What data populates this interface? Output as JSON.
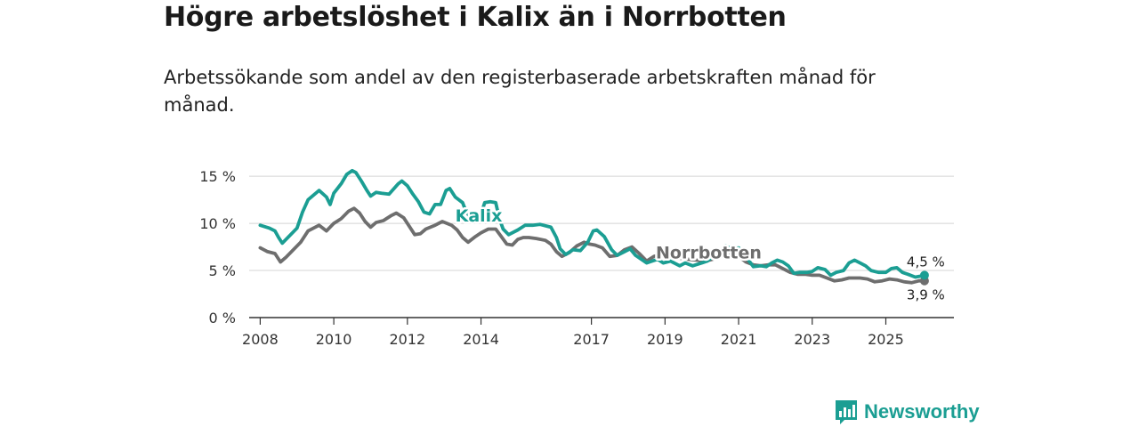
{
  "title": "Högre arbetslöshet i Kalix än i Norrbotten",
  "subtitle": "Arbetssökande som andel av den registerbaserade arbetskraften månad för månad.",
  "brand": {
    "name": "Newsworthy",
    "color": "#1b9e93",
    "icon": "bar-chart-logo-icon"
  },
  "chart_data": {
    "type": "line",
    "xlim": [
      2007.7,
      2026.85
    ],
    "ylim": [
      0,
      17
    ],
    "y_ticks": [
      0,
      5,
      10,
      15
    ],
    "y_tick_labels": [
      "0 %",
      "5 %",
      "10 %",
      "15 %"
    ],
    "x_ticks": [
      2008,
      2010,
      2012,
      2014,
      2017,
      2019,
      2021,
      2023,
      2025
    ],
    "x_tick_labels": [
      "2008",
      "2010",
      "2012",
      "2014",
      "2017",
      "2019",
      "2021",
      "2023",
      "2025"
    ],
    "grid": true,
    "series": [
      {
        "name": "Kalix",
        "color": "#1b9e93",
        "label_at": [
          2013.3,
          10.2
        ],
        "end_label": "4,5 %",
        "points": [
          [
            2008.0,
            9.8
          ],
          [
            2008.25,
            9.5
          ],
          [
            2008.4,
            9.2
          ],
          [
            2008.5,
            8.5
          ],
          [
            2008.6,
            7.9
          ],
          [
            2008.8,
            8.7
          ],
          [
            2009.0,
            9.5
          ],
          [
            2009.15,
            11.2
          ],
          [
            2009.3,
            12.5
          ],
          [
            2009.6,
            13.5
          ],
          [
            2009.8,
            12.8
          ],
          [
            2009.9,
            12.0
          ],
          [
            2010.0,
            13.2
          ],
          [
            2010.2,
            14.2
          ],
          [
            2010.35,
            15.2
          ],
          [
            2010.5,
            15.6
          ],
          [
            2010.6,
            15.4
          ],
          [
            2010.75,
            14.5
          ],
          [
            2010.9,
            13.5
          ],
          [
            2011.0,
            12.9
          ],
          [
            2011.15,
            13.3
          ],
          [
            2011.3,
            13.2
          ],
          [
            2011.5,
            13.1
          ],
          [
            2011.75,
            14.2
          ],
          [
            2011.85,
            14.5
          ],
          [
            2012.0,
            14.0
          ],
          [
            2012.15,
            13.1
          ],
          [
            2012.3,
            12.3
          ],
          [
            2012.45,
            11.2
          ],
          [
            2012.6,
            11.0
          ],
          [
            2012.75,
            12.0
          ],
          [
            2012.9,
            12.0
          ],
          [
            2013.05,
            13.5
          ],
          [
            2013.15,
            13.7
          ],
          [
            2013.3,
            12.8
          ],
          [
            2013.5,
            12.2
          ],
          [
            2013.6,
            11.2
          ],
          [
            2013.75,
            10.5
          ],
          [
            2013.85,
            10.6
          ],
          [
            2014.0,
            11.0
          ],
          [
            2014.1,
            12.2
          ],
          [
            2014.25,
            12.3
          ],
          [
            2014.4,
            12.2
          ],
          [
            2014.5,
            10.5
          ],
          [
            2014.6,
            9.4
          ],
          [
            2014.75,
            8.8
          ],
          [
            2015.0,
            9.3
          ],
          [
            2015.2,
            9.8
          ],
          [
            2015.4,
            9.8
          ],
          [
            2015.6,
            9.9
          ],
          [
            2015.9,
            9.6
          ],
          [
            2016.05,
            8.5
          ],
          [
            2016.15,
            7.3
          ],
          [
            2016.3,
            6.7
          ],
          [
            2016.5,
            7.2
          ],
          [
            2016.7,
            7.1
          ],
          [
            2016.9,
            8.0
          ],
          [
            2017.05,
            9.2
          ],
          [
            2017.15,
            9.3
          ],
          [
            2017.35,
            8.6
          ],
          [
            2017.55,
            7.2
          ],
          [
            2017.7,
            6.6
          ],
          [
            2017.9,
            7.0
          ],
          [
            2018.05,
            7.3
          ],
          [
            2018.2,
            6.6
          ],
          [
            2018.5,
            5.8
          ],
          [
            2018.65,
            6.0
          ],
          [
            2018.8,
            6.2
          ],
          [
            2018.95,
            5.8
          ],
          [
            2019.15,
            6.0
          ],
          [
            2019.4,
            5.5
          ],
          [
            2019.55,
            5.8
          ],
          [
            2019.75,
            5.5
          ],
          [
            2020.0,
            5.8
          ],
          [
            2020.15,
            6.0
          ],
          [
            2020.3,
            6.5
          ],
          [
            2020.5,
            6.7
          ],
          [
            2020.65,
            7.6
          ],
          [
            2020.8,
            7.3
          ],
          [
            2021.0,
            7.4
          ],
          [
            2021.1,
            7.0
          ],
          [
            2021.25,
            6.2
          ],
          [
            2021.4,
            5.4
          ],
          [
            2021.6,
            5.5
          ],
          [
            2021.75,
            5.4
          ],
          [
            2021.9,
            5.8
          ],
          [
            2022.05,
            6.1
          ],
          [
            2022.2,
            5.9
          ],
          [
            2022.35,
            5.5
          ],
          [
            2022.5,
            4.7
          ],
          [
            2022.65,
            4.8
          ],
          [
            2022.85,
            4.8
          ],
          [
            2023.0,
            4.9
          ],
          [
            2023.15,
            5.3
          ],
          [
            2023.35,
            5.1
          ],
          [
            2023.5,
            4.5
          ],
          [
            2023.65,
            4.8
          ],
          [
            2023.85,
            5.0
          ],
          [
            2024.0,
            5.8
          ],
          [
            2024.15,
            6.1
          ],
          [
            2024.3,
            5.8
          ],
          [
            2024.45,
            5.5
          ],
          [
            2024.6,
            5.0
          ],
          [
            2024.8,
            4.8
          ],
          [
            2025.0,
            4.8
          ],
          [
            2025.15,
            5.2
          ],
          [
            2025.3,
            5.3
          ],
          [
            2025.45,
            4.8
          ],
          [
            2025.6,
            4.6
          ],
          [
            2025.8,
            4.3
          ],
          [
            2025.95,
            4.4
          ],
          [
            2026.05,
            4.5
          ]
        ]
      },
      {
        "name": "Norrbotten",
        "color": "#6e6e6e",
        "label_at": [
          2018.75,
          6.3
        ],
        "end_label": "3,9 %",
        "points": [
          [
            2008.0,
            7.4
          ],
          [
            2008.2,
            7.0
          ],
          [
            2008.4,
            6.8
          ],
          [
            2008.55,
            5.9
          ],
          [
            2008.7,
            6.4
          ],
          [
            2008.9,
            7.2
          ],
          [
            2009.1,
            8.0
          ],
          [
            2009.3,
            9.2
          ],
          [
            2009.6,
            9.8
          ],
          [
            2009.8,
            9.2
          ],
          [
            2010.0,
            10.0
          ],
          [
            2010.2,
            10.5
          ],
          [
            2010.4,
            11.3
          ],
          [
            2010.55,
            11.6
          ],
          [
            2010.7,
            11.1
          ],
          [
            2010.85,
            10.2
          ],
          [
            2011.0,
            9.6
          ],
          [
            2011.15,
            10.1
          ],
          [
            2011.35,
            10.3
          ],
          [
            2011.55,
            10.8
          ],
          [
            2011.7,
            11.1
          ],
          [
            2011.9,
            10.6
          ],
          [
            2012.05,
            9.7
          ],
          [
            2012.2,
            8.8
          ],
          [
            2012.35,
            8.9
          ],
          [
            2012.5,
            9.4
          ],
          [
            2012.75,
            9.8
          ],
          [
            2012.95,
            10.2
          ],
          [
            2013.2,
            9.8
          ],
          [
            2013.35,
            9.3
          ],
          [
            2013.5,
            8.5
          ],
          [
            2013.65,
            8.0
          ],
          [
            2013.85,
            8.6
          ],
          [
            2014.0,
            9.0
          ],
          [
            2014.2,
            9.4
          ],
          [
            2014.4,
            9.4
          ],
          [
            2014.55,
            8.6
          ],
          [
            2014.7,
            7.8
          ],
          [
            2014.85,
            7.7
          ],
          [
            2015.0,
            8.3
          ],
          [
            2015.15,
            8.5
          ],
          [
            2015.3,
            8.5
          ],
          [
            2015.5,
            8.4
          ],
          [
            2015.75,
            8.2
          ],
          [
            2015.9,
            7.8
          ],
          [
            2016.05,
            7.0
          ],
          [
            2016.2,
            6.5
          ],
          [
            2016.4,
            6.9
          ],
          [
            2016.6,
            7.6
          ],
          [
            2016.8,
            8.0
          ],
          [
            2016.95,
            7.8
          ],
          [
            2017.1,
            7.7
          ],
          [
            2017.3,
            7.4
          ],
          [
            2017.5,
            6.5
          ],
          [
            2017.7,
            6.6
          ],
          [
            2017.9,
            7.2
          ],
          [
            2018.1,
            7.5
          ],
          [
            2018.3,
            6.8
          ],
          [
            2018.5,
            6.0
          ],
          [
            2018.7,
            6.5
          ],
          [
            2018.9,
            6.7
          ],
          [
            2019.1,
            6.6
          ],
          [
            2019.4,
            6.3
          ],
          [
            2019.6,
            6.2
          ],
          [
            2019.85,
            6.1
          ],
          [
            2020.1,
            6.0
          ],
          [
            2020.4,
            6.3
          ],
          [
            2020.6,
            6.6
          ],
          [
            2020.8,
            6.8
          ],
          [
            2021.0,
            6.5
          ],
          [
            2021.2,
            5.9
          ],
          [
            2021.4,
            5.6
          ],
          [
            2021.6,
            5.5
          ],
          [
            2021.8,
            5.6
          ],
          [
            2022.0,
            5.6
          ],
          [
            2022.2,
            5.2
          ],
          [
            2022.4,
            4.8
          ],
          [
            2022.6,
            4.6
          ],
          [
            2022.8,
            4.6
          ],
          [
            2023.0,
            4.5
          ],
          [
            2023.2,
            4.5
          ],
          [
            2023.4,
            4.2
          ],
          [
            2023.6,
            3.9
          ],
          [
            2023.8,
            4.0
          ],
          [
            2024.0,
            4.2
          ],
          [
            2024.3,
            4.2
          ],
          [
            2024.5,
            4.1
          ],
          [
            2024.7,
            3.8
          ],
          [
            2024.9,
            3.9
          ],
          [
            2025.1,
            4.1
          ],
          [
            2025.3,
            4.0
          ],
          [
            2025.5,
            3.8
          ],
          [
            2025.7,
            3.7
          ],
          [
            2025.9,
            3.9
          ],
          [
            2026.05,
            3.9
          ]
        ]
      }
    ]
  }
}
